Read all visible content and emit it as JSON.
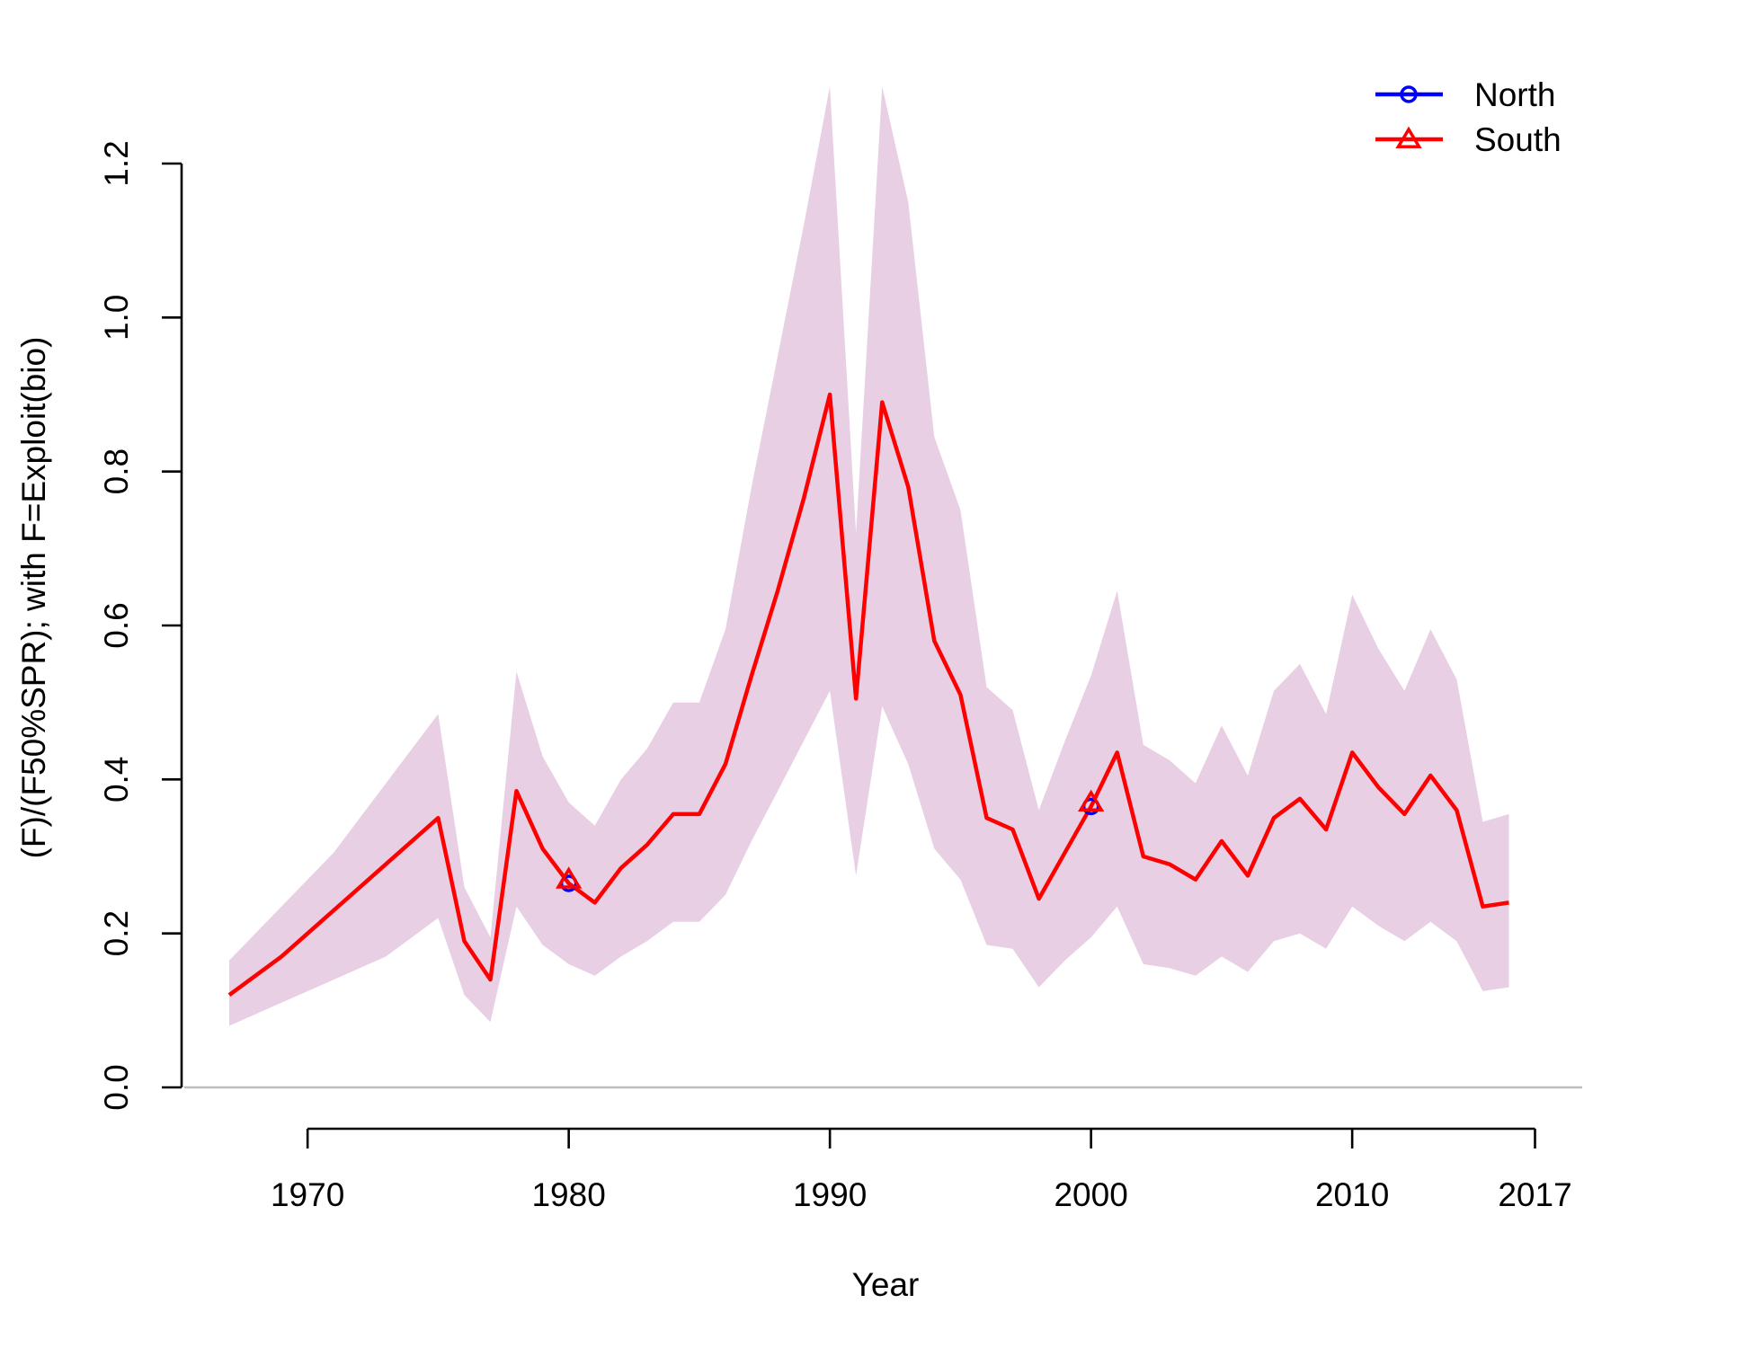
{
  "chart_data": {
    "type": "line",
    "xlabel": "Year",
    "ylabel": "(F)/(F50%SPR); with F=Exploit(bio)",
    "xlim": [
      1967,
      2017
    ],
    "ylim": [
      0,
      1.2
    ],
    "x_ticks": [
      {
        "value": 1970,
        "label": "1970"
      },
      {
        "value": 1980,
        "label": "1980"
      },
      {
        "value": 1990,
        "label": "1990"
      },
      {
        "value": 2000,
        "label": "2000"
      },
      {
        "value": 2010,
        "label": "2010"
      },
      {
        "value": 2017,
        "label": "2017"
      }
    ],
    "y_ticks": [
      {
        "value": 0.0,
        "label": "0.0"
      },
      {
        "value": 0.2,
        "label": "0.2"
      },
      {
        "value": 0.4,
        "label": "0.4"
      },
      {
        "value": 0.6,
        "label": "0.6"
      },
      {
        "value": 0.8,
        "label": "0.8"
      },
      {
        "value": 1.0,
        "label": "1.0"
      },
      {
        "value": 1.2,
        "label": "1.2"
      }
    ],
    "grid": false,
    "legend_position": "top-right",
    "colors": {
      "north": "#0000ff",
      "south": "#ff0000",
      "band": "#e8cfe4",
      "zero_line": "#bebebe"
    },
    "series": [
      {
        "name": "North",
        "color": "#0000ff",
        "marker": "circle",
        "x": [
          1980,
          2000
        ],
        "y": [
          0.265,
          0.365
        ]
      },
      {
        "name": "South",
        "color": "#ff0000",
        "marker": "triangle",
        "x": [
          1967,
          1969,
          1971,
          1973,
          1975,
          1976,
          1977,
          1978,
          1979,
          1980,
          1981,
          1982,
          1983,
          1984,
          1985,
          1986,
          1987,
          1988,
          1989,
          1990,
          1991,
          1992,
          1993,
          1994,
          1995,
          1996,
          1997,
          1998,
          1999,
          2000,
          2001,
          2002,
          2003,
          2004,
          2005,
          2006,
          2007,
          2008,
          2009,
          2010,
          2011,
          2012,
          2013,
          2014,
          2015,
          2016
        ],
        "y": [
          0.12,
          0.17,
          0.23,
          0.29,
          0.35,
          0.19,
          0.14,
          0.385,
          0.31,
          0.265,
          0.24,
          0.285,
          0.315,
          0.355,
          0.355,
          0.42,
          0.535,
          0.645,
          0.765,
          0.9,
          0.505,
          0.89,
          0.78,
          0.58,
          0.51,
          0.35,
          0.335,
          0.245,
          0.305,
          0.365,
          0.435,
          0.3,
          0.29,
          0.27,
          0.32,
          0.275,
          0.35,
          0.375,
          0.335,
          0.435,
          0.39,
          0.355,
          0.405,
          0.36,
          0.235,
          0.24
        ],
        "marker_x": [
          1980,
          2000
        ],
        "marker_y": [
          0.27,
          0.37
        ]
      }
    ],
    "band": {
      "x": [
        1967,
        1969,
        1971,
        1973,
        1975,
        1976,
        1977,
        1978,
        1979,
        1980,
        1981,
        1982,
        1983,
        1984,
        1985,
        1986,
        1987,
        1988,
        1989,
        1990,
        1991,
        1992,
        1993,
        1994,
        1995,
        1996,
        1997,
        1998,
        1999,
        2000,
        2001,
        2002,
        2003,
        2004,
        2005,
        2006,
        2007,
        2008,
        2009,
        2010,
        2011,
        2012,
        2013,
        2014,
        2015,
        2016
      ],
      "lower": [
        0.08,
        0.11,
        0.14,
        0.17,
        0.22,
        0.12,
        0.085,
        0.235,
        0.185,
        0.16,
        0.145,
        0.17,
        0.19,
        0.215,
        0.215,
        0.25,
        0.32,
        0.385,
        0.45,
        0.515,
        0.275,
        0.495,
        0.42,
        0.31,
        0.27,
        0.185,
        0.18,
        0.13,
        0.165,
        0.195,
        0.235,
        0.16,
        0.155,
        0.145,
        0.17,
        0.15,
        0.19,
        0.2,
        0.18,
        0.235,
        0.21,
        0.19,
        0.215,
        0.19,
        0.125,
        0.13
      ],
      "upper": [
        0.165,
        0.235,
        0.305,
        0.395,
        0.485,
        0.26,
        0.195,
        0.54,
        0.43,
        0.37,
        0.34,
        0.4,
        0.44,
        0.5,
        0.5,
        0.595,
        0.78,
        0.95,
        1.12,
        1.3,
        0.72,
        1.3,
        1.15,
        0.845,
        0.75,
        0.52,
        0.49,
        0.36,
        0.45,
        0.535,
        0.645,
        0.445,
        0.425,
        0.395,
        0.47,
        0.405,
        0.515,
        0.55,
        0.485,
        0.64,
        0.57,
        0.515,
        0.595,
        0.53,
        0.345,
        0.355
      ]
    }
  }
}
